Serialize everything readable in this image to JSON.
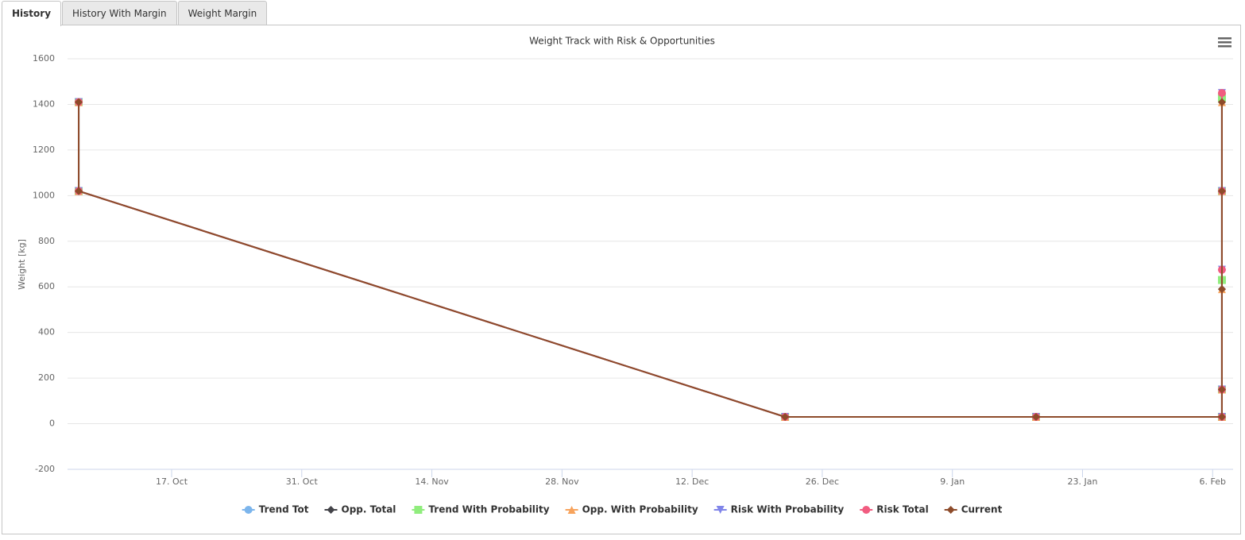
{
  "tabs": [
    "History",
    "History With Margin",
    "Weight Margin"
  ],
  "chart_data": {
    "type": "line",
    "title": "Weight Track with Risk & Opportunities",
    "y_label": "Weight [kg]",
    "x": [
      280,
      280,
      356,
      383,
      403,
      403,
      403,
      403,
      403
    ],
    "xlim": [
      278.8,
      404.2
    ],
    "xticks": [
      {
        "value": 290,
        "label": "17. Oct"
      },
      {
        "value": 304,
        "label": "31. Oct"
      },
      {
        "value": 318,
        "label": "14. Nov"
      },
      {
        "value": 332,
        "label": "28. Nov"
      },
      {
        "value": 346,
        "label": "12. Dec"
      },
      {
        "value": 360,
        "label": "26. Dec"
      },
      {
        "value": 374,
        "label": "9. Jan"
      },
      {
        "value": 388,
        "label": "23. Jan"
      },
      {
        "value": 402,
        "label": "6. Feb"
      }
    ],
    "ylim": [
      -200,
      1600
    ],
    "yticks": [
      -200,
      0,
      200,
      400,
      600,
      800,
      1000,
      1200,
      1400,
      1600
    ],
    "grid": true,
    "series": [
      {
        "name": "Trend Tot",
        "color": "#7cb5ec",
        "marker": "circle",
        "values": [
          1410,
          1020,
          30,
          30,
          30,
          150,
          630,
          1020,
          1430
        ]
      },
      {
        "name": "Opp. Total",
        "color": "#434348",
        "marker": "diamond",
        "values": [
          1410,
          1020,
          30,
          30,
          30,
          150,
          590,
          1020,
          1410
        ]
      },
      {
        "name": "Trend With Probability",
        "color": "#90ed7d",
        "marker": "square",
        "values": [
          1410,
          1020,
          30,
          30,
          30,
          150,
          630,
          1020,
          1430
        ]
      },
      {
        "name": "Opp. With Probability",
        "color": "#f7a35c",
        "marker": "triangle",
        "values": [
          1410,
          1020,
          30,
          30,
          30,
          150,
          590,
          1020,
          1410
        ]
      },
      {
        "name": "Risk With Probability",
        "color": "#8085e9",
        "marker": "triangle-down",
        "values": [
          1410,
          1020,
          30,
          30,
          30,
          150,
          675,
          1020,
          1450
        ]
      },
      {
        "name": "Risk Total",
        "color": "#f15c80",
        "marker": "circle",
        "values": [
          1410,
          1020,
          30,
          30,
          30,
          150,
          675,
          1020,
          1450
        ]
      },
      {
        "name": "Current",
        "color": "#8d4b2a",
        "marker": "diamond",
        "values": [
          1410,
          1020,
          30,
          30,
          30,
          150,
          590,
          1020,
          1410
        ]
      }
    ]
  }
}
